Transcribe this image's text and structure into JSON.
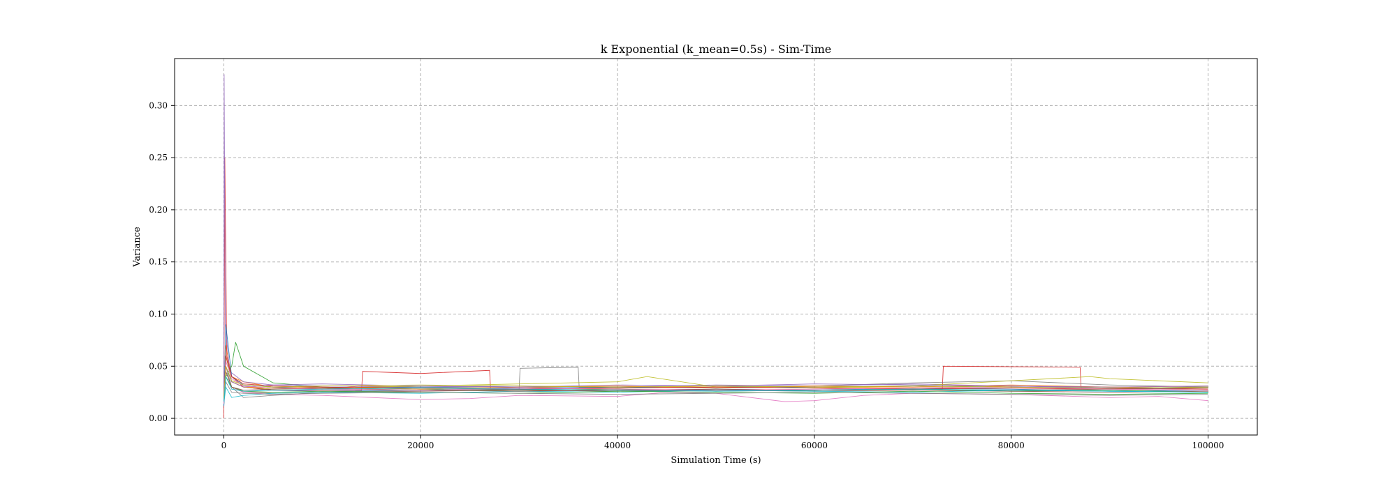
{
  "chart_data": {
    "type": "line",
    "title": "k Exponential (k_mean=0.5s) - Sim-Time",
    "xlabel": "Simulation Time (s)",
    "ylabel": "Variance",
    "xlim": [
      -5000,
      105000
    ],
    "ylim": [
      -0.016,
      0.345
    ],
    "xticks": [
      0,
      20000,
      40000,
      60000,
      80000,
      100000
    ],
    "xtick_labels": [
      "0",
      "20000",
      "40000",
      "60000",
      "80000",
      "100000"
    ],
    "yticks": [
      0.0,
      0.05,
      0.1,
      0.15,
      0.2,
      0.25,
      0.3
    ],
    "ytick_labels": [
      "0.00",
      "0.05",
      "0.10",
      "0.15",
      "0.20",
      "0.25",
      "0.30"
    ],
    "grid": true,
    "legend": false,
    "colors": [
      "#1f77b4",
      "#ff7f0e",
      "#2ca02c",
      "#d62728",
      "#9467bd",
      "#8c564b",
      "#e377c2",
      "#7f7f7f",
      "#bcbd22",
      "#17becf"
    ],
    "series": [
      {
        "x": [
          0,
          200,
          800,
          2000,
          5000,
          10000,
          20000,
          30000,
          40000,
          50000,
          60000,
          70000,
          80000,
          90000,
          100000
        ],
        "values": [
          0.01,
          0.05,
          0.035,
          0.03,
          0.027,
          0.026,
          0.027,
          0.028,
          0.027,
          0.028,
          0.027,
          0.029,
          0.028,
          0.026,
          0.027
        ]
      },
      {
        "x": [
          0,
          200,
          800,
          2000,
          5000,
          10000,
          14000,
          20000,
          27000,
          30000,
          40000,
          50000,
          60000,
          70000,
          80000,
          90000,
          100000
        ],
        "values": [
          0.02,
          0.07,
          0.04,
          0.035,
          0.03,
          0.028,
          0.031,
          0.03,
          0.029,
          0.03,
          0.029,
          0.031,
          0.03,
          0.029,
          0.031,
          0.03,
          0.029
        ]
      },
      {
        "x": [
          0,
          200,
          800,
          1200,
          2000,
          5000,
          10000,
          20000,
          30000,
          40000,
          50000,
          60000,
          70000,
          80000,
          90000,
          100000
        ],
        "values": [
          0.015,
          0.04,
          0.05,
          0.073,
          0.05,
          0.034,
          0.03,
          0.028,
          0.027,
          0.028,
          0.026,
          0.027,
          0.028,
          0.026,
          0.027,
          0.025
        ]
      },
      {
        "x": [
          0,
          100,
          300,
          800,
          2000,
          5000,
          10000,
          14000,
          14100,
          20000,
          27000,
          27100,
          40000,
          60000,
          73000,
          73100,
          87000,
          87100,
          100000
        ],
        "values": [
          0.0,
          0.25,
          0.06,
          0.04,
          0.03,
          0.027,
          0.027,
          0.027,
          0.045,
          0.043,
          0.046,
          0.028,
          0.027,
          0.027,
          0.028,
          0.05,
          0.049,
          0.029,
          0.028
        ]
      },
      {
        "x": [
          0,
          30,
          150,
          600,
          2000,
          5000,
          10000,
          20000,
          30000,
          40000,
          50000,
          60000,
          70000,
          80000,
          90000,
          100000
        ],
        "values": [
          0.02,
          0.33,
          0.09,
          0.045,
          0.035,
          0.032,
          0.031,
          0.03,
          0.031,
          0.03,
          0.032,
          0.031,
          0.033,
          0.031,
          0.029,
          0.03
        ]
      },
      {
        "x": [
          0,
          200,
          800,
          2000,
          5000,
          10000,
          20000,
          30000,
          40000,
          50000,
          60000,
          70000,
          80000,
          90000,
          100000
        ],
        "values": [
          0.012,
          0.045,
          0.03,
          0.025,
          0.024,
          0.025,
          0.026,
          0.027,
          0.026,
          0.027,
          0.026,
          0.027,
          0.026,
          0.025,
          0.026
        ]
      },
      {
        "x": [
          0,
          200,
          800,
          2000,
          5000,
          10000,
          20000,
          25000,
          30000,
          40000,
          45000,
          50000,
          57000,
          60000,
          65000,
          70000,
          80000,
          90000,
          95000,
          100000
        ],
        "values": [
          0.018,
          0.04,
          0.03,
          0.025,
          0.023,
          0.022,
          0.018,
          0.019,
          0.022,
          0.021,
          0.025,
          0.024,
          0.016,
          0.017,
          0.022,
          0.024,
          0.023,
          0.02,
          0.021,
          0.017
        ]
      },
      {
        "x": [
          0,
          200,
          800,
          2000,
          5000,
          10000,
          20000,
          30000,
          30100,
          36000,
          36100,
          40000,
          50000,
          60000,
          70000,
          80000,
          90000,
          100000
        ],
        "values": [
          0.015,
          0.05,
          0.03,
          0.02,
          0.022,
          0.025,
          0.027,
          0.028,
          0.048,
          0.049,
          0.03,
          0.029,
          0.03,
          0.031,
          0.034,
          0.036,
          0.032,
          0.03
        ]
      },
      {
        "x": [
          0,
          200,
          800,
          2000,
          5000,
          10000,
          20000,
          30000,
          40000,
          43000,
          50000,
          60000,
          70000,
          80000,
          88000,
          90000,
          100000
        ],
        "values": [
          0.014,
          0.06,
          0.035,
          0.03,
          0.028,
          0.029,
          0.031,
          0.033,
          0.035,
          0.04,
          0.03,
          0.029,
          0.031,
          0.036,
          0.04,
          0.038,
          0.034
        ]
      },
      {
        "x": [
          0,
          200,
          800,
          2000,
          5000,
          10000,
          20000,
          30000,
          40000,
          50000,
          60000,
          70000,
          80000,
          90000,
          100000
        ],
        "values": [
          0.013,
          0.03,
          0.02,
          0.022,
          0.024,
          0.025,
          0.024,
          0.026,
          0.025,
          0.027,
          0.026,
          0.025,
          0.027,
          0.026,
          0.025
        ]
      },
      {
        "x": [
          0,
          200,
          800,
          2000,
          5000,
          10000,
          20000,
          30000,
          40000,
          50000,
          60000,
          70000,
          80000,
          90000,
          100000
        ],
        "values": [
          0.012,
          0.09,
          0.04,
          0.032,
          0.03,
          0.029,
          0.03,
          0.029,
          0.03,
          0.029,
          0.03,
          0.031,
          0.03,
          0.029,
          0.03
        ]
      },
      {
        "x": [
          0,
          200,
          800,
          2000,
          5000,
          10000,
          20000,
          30000,
          40000,
          50000,
          60000,
          70000,
          80000,
          90000,
          100000
        ],
        "values": [
          0.02,
          0.05,
          0.035,
          0.03,
          0.029,
          0.03,
          0.028,
          0.03,
          0.031,
          0.029,
          0.031,
          0.03,
          0.032,
          0.03,
          0.031
        ]
      },
      {
        "x": [
          0,
          200,
          800,
          2000,
          5000,
          10000,
          20000,
          30000,
          40000,
          50000,
          60000,
          70000,
          80000,
          90000,
          100000
        ],
        "values": [
          0.018,
          0.04,
          0.03,
          0.026,
          0.025,
          0.026,
          0.025,
          0.024,
          0.026,
          0.025,
          0.024,
          0.026,
          0.024,
          0.023,
          0.024
        ]
      },
      {
        "x": [
          0,
          200,
          800,
          2000,
          5000,
          10000,
          20000,
          30000,
          40000,
          50000,
          60000,
          70000,
          80000,
          90000,
          100000
        ],
        "values": [
          0.016,
          0.06,
          0.04,
          0.033,
          0.031,
          0.03,
          0.029,
          0.028,
          0.029,
          0.03,
          0.029,
          0.028,
          0.029,
          0.028,
          0.027
        ]
      },
      {
        "x": [
          0,
          200,
          800,
          2000,
          5000,
          10000,
          20000,
          30000,
          40000,
          50000,
          60000,
          70000,
          80000,
          90000,
          100000
        ],
        "values": [
          0.015,
          0.05,
          0.035,
          0.03,
          0.032,
          0.033,
          0.031,
          0.03,
          0.032,
          0.031,
          0.033,
          0.032,
          0.031,
          0.03,
          0.031
        ]
      },
      {
        "x": [
          0,
          200,
          800,
          2000,
          5000,
          10000,
          20000,
          30000,
          40000,
          50000,
          60000,
          70000,
          80000,
          90000,
          100000
        ],
        "values": [
          0.02,
          0.045,
          0.03,
          0.027,
          0.028,
          0.029,
          0.027,
          0.026,
          0.027,
          0.028,
          0.027,
          0.028,
          0.027,
          0.028,
          0.029
        ]
      },
      {
        "x": [
          0,
          200,
          800,
          2000,
          5000,
          10000,
          20000,
          30000,
          40000,
          50000,
          60000,
          70000,
          80000,
          90000,
          100000
        ],
        "values": [
          0.014,
          0.055,
          0.038,
          0.031,
          0.029,
          0.028,
          0.027,
          0.029,
          0.028,
          0.027,
          0.028,
          0.029,
          0.03,
          0.028,
          0.027
        ]
      },
      {
        "x": [
          0,
          200,
          800,
          2000,
          5000,
          10000,
          20000,
          30000,
          40000,
          50000,
          60000,
          70000,
          80000,
          90000,
          100000
        ],
        "values": [
          0.017,
          0.035,
          0.025,
          0.024,
          0.023,
          0.024,
          0.025,
          0.024,
          0.023,
          0.024,
          0.025,
          0.024,
          0.023,
          0.022,
          0.023
        ]
      },
      {
        "x": [
          0,
          200,
          800,
          2000,
          5000,
          10000,
          20000,
          30000,
          40000,
          50000,
          60000,
          70000,
          80000,
          90000,
          100000
        ],
        "values": [
          0.019,
          0.05,
          0.036,
          0.032,
          0.03,
          0.031,
          0.032,
          0.031,
          0.03,
          0.031,
          0.03,
          0.031,
          0.03,
          0.029,
          0.03
        ]
      },
      {
        "x": [
          0,
          200,
          800,
          2000,
          5000,
          10000,
          20000,
          30000,
          40000,
          50000,
          60000,
          70000,
          80000,
          90000,
          100000
        ],
        "values": [
          0.016,
          0.04,
          0.028,
          0.026,
          0.027,
          0.028,
          0.029,
          0.028,
          0.027,
          0.026,
          0.027,
          0.028,
          0.027,
          0.026,
          0.025
        ]
      }
    ]
  }
}
